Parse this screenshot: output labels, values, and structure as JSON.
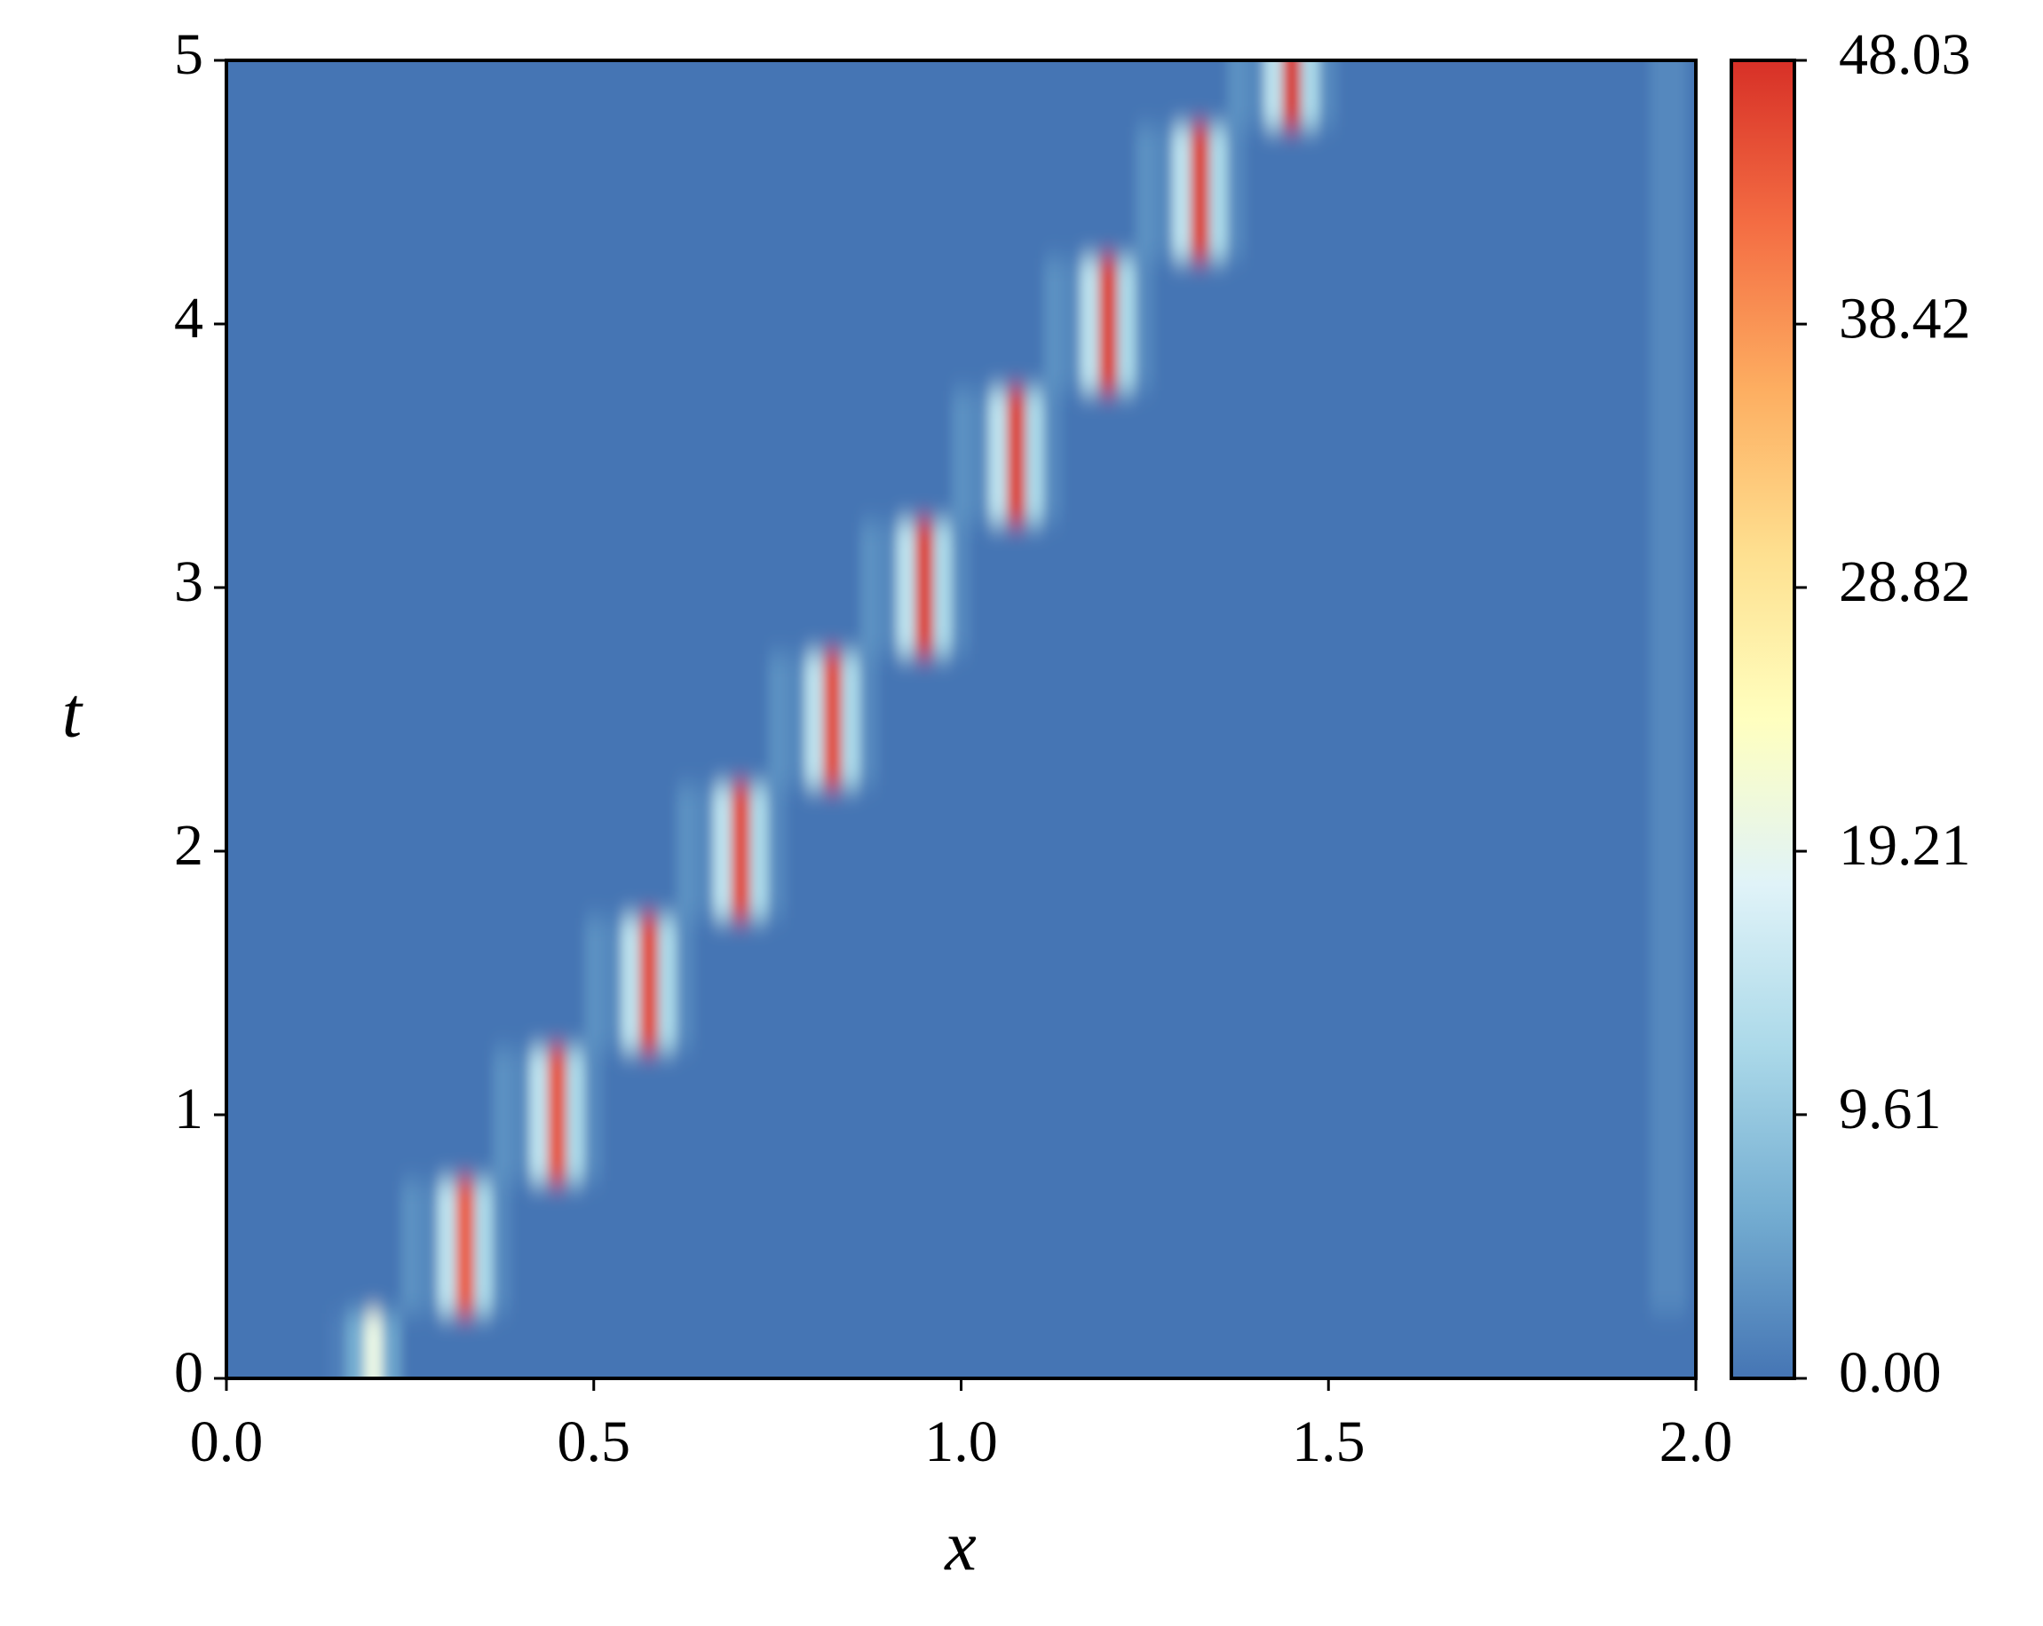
{
  "chart_data": {
    "type": "heatmap",
    "xlabel": "x",
    "ylabel": "t",
    "xlim": [
      0,
      2
    ],
    "ylim": [
      0,
      5
    ],
    "xticks": [
      {
        "value": 0,
        "label": "0.0"
      },
      0.5,
      {
        "value": 1,
        "label": "1.0"
      },
      1.5,
      {
        "value": 2,
        "label": "2.0"
      }
    ],
    "yticks": [
      0,
      1,
      2,
      3,
      4,
      5
    ],
    "zlim": [
      0,
      48.03
    ],
    "colorbar_ticks": [
      {
        "value": 0,
        "label": "0.00"
      },
      9.61,
      19.21,
      28.82,
      38.42,
      48.03
    ],
    "colormap": [
      "#4575b4",
      "#74add1",
      "#abd9e9",
      "#e0f3f8",
      "#ffffbf",
      "#fee090",
      "#fdae61",
      "#f46d43",
      "#d73027"
    ],
    "x": [
      0,
      0.025,
      0.05,
      0.075,
      0.1,
      0.125,
      0.15,
      0.175,
      0.2,
      0.225,
      0.25,
      0.275,
      0.3,
      0.325,
      0.35,
      0.375,
      0.4,
      0.425,
      0.45,
      0.475,
      0.5,
      0.525,
      0.55,
      0.575,
      0.6,
      0.625,
      0.65,
      0.675,
      0.7,
      0.725,
      0.75,
      0.775,
      0.8,
      0.825,
      0.85,
      0.875,
      0.9,
      0.925,
      0.95,
      0.975,
      1,
      1.025,
      1.05,
      1.075,
      1.1,
      1.125,
      1.15,
      1.175,
      1.2,
      1.225,
      1.25,
      1.275,
      1.3,
      1.325,
      1.35,
      1.375,
      1.4,
      1.425,
      1.45,
      1.475,
      1.5,
      1.525,
      1.55,
      1.575,
      1.6,
      1.625,
      1.65,
      1.675,
      1.7,
      1.725,
      1.75,
      1.775,
      1.8,
      1.825,
      1.85,
      1.875,
      1.9,
      1.925,
      1.95,
      1.975,
      2
    ],
    "y": [
      0,
      0.5,
      1,
      1.5,
      2,
      2.5,
      3,
      3.5,
      4,
      4.5,
      5
    ],
    "z": [
      [
        0,
        0,
        0,
        0,
        0,
        0,
        1,
        6,
        20,
        5,
        0,
        0,
        0,
        0,
        0,
        0,
        0,
        0,
        0,
        0,
        0,
        0,
        0,
        0,
        0,
        0,
        0,
        0,
        0,
        0,
        0,
        0,
        0,
        0,
        0,
        0,
        0,
        0,
        0,
        0,
        0,
        0,
        0,
        0,
        0,
        0,
        0,
        0,
        0,
        0,
        0,
        0,
        0,
        0,
        0,
        0,
        0,
        0,
        0,
        0,
        0,
        0,
        0,
        0,
        0,
        0,
        0,
        0,
        0,
        0,
        0,
        0,
        0,
        0,
        0,
        0,
        0,
        0,
        0,
        0,
        0
      ],
      [
        0,
        0,
        0,
        0,
        0,
        0,
        0,
        0,
        0,
        0,
        3,
        2,
        14,
        44,
        12,
        2,
        0,
        0,
        0,
        0,
        0,
        0,
        0,
        0,
        0,
        0,
        0,
        0,
        0,
        0,
        0,
        0,
        0,
        0,
        0,
        0,
        0,
        0,
        0,
        0,
        0,
        0,
        0,
        0,
        0,
        0,
        0,
        0,
        0,
        0,
        0,
        0,
        0,
        0,
        0,
        0,
        0,
        0,
        0,
        0,
        0,
        0,
        0,
        0,
        0,
        0,
        0,
        0,
        0,
        0,
        0,
        0,
        0,
        0,
        0,
        0,
        0,
        0,
        2,
        2,
        0
      ],
      [
        0,
        0,
        0,
        0,
        0,
        0,
        0,
        0,
        0,
        0,
        0,
        0,
        0,
        0,
        0,
        3,
        2,
        14,
        45,
        12,
        2,
        0,
        0,
        0,
        0,
        0,
        0,
        0,
        0,
        0,
        0,
        0,
        0,
        0,
        0,
        0,
        0,
        0,
        0,
        0,
        0,
        0,
        0,
        0,
        0,
        0,
        0,
        0,
        0,
        0,
        0,
        0,
        0,
        0,
        0,
        0,
        0,
        0,
        0,
        0,
        0,
        0,
        0,
        0,
        0,
        0,
        0,
        0,
        0,
        0,
        0,
        0,
        0,
        0,
        0,
        0,
        0,
        0,
        2,
        2,
        0
      ],
      [
        0,
        0,
        0,
        0,
        0,
        0,
        0,
        0,
        0,
        0,
        0,
        0,
        0,
        0,
        0,
        0,
        0,
        0,
        0,
        0,
        3,
        2,
        14,
        46,
        12,
        2,
        0,
        0,
        0,
        0,
        0,
        0,
        0,
        0,
        0,
        0,
        0,
        0,
        0,
        0,
        0,
        0,
        0,
        0,
        0,
        0,
        0,
        0,
        0,
        0,
        0,
        0,
        0,
        0,
        0,
        0,
        0,
        0,
        0,
        0,
        0,
        0,
        0,
        0,
        0,
        0,
        0,
        0,
        0,
        0,
        0,
        0,
        0,
        0,
        0,
        0,
        0,
        0,
        2,
        2,
        0
      ],
      [
        0,
        0,
        0,
        0,
        0,
        0,
        0,
        0,
        0,
        0,
        0,
        0,
        0,
        0,
        0,
        0,
        0,
        0,
        0,
        0,
        0,
        0,
        0,
        0,
        0,
        3,
        2,
        14,
        46,
        12,
        2,
        0,
        0,
        0,
        0,
        0,
        0,
        0,
        0,
        0,
        0,
        0,
        0,
        0,
        0,
        0,
        0,
        0,
        0,
        0,
        0,
        0,
        0,
        0,
        0,
        0,
        0,
        0,
        0,
        0,
        0,
        0,
        0,
        0,
        0,
        0,
        0,
        0,
        0,
        0,
        0,
        0,
        0,
        0,
        0,
        0,
        0,
        0,
        2,
        2,
        0
      ],
      [
        0,
        0,
        0,
        0,
        0,
        0,
        0,
        0,
        0,
        0,
        0,
        0,
        0,
        0,
        0,
        0,
        0,
        0,
        0,
        0,
        0,
        0,
        0,
        0,
        0,
        0,
        0,
        0,
        0,
        0,
        3,
        2,
        14,
        46,
        12,
        2,
        0,
        0,
        0,
        0,
        0,
        0,
        0,
        0,
        0,
        0,
        0,
        0,
        0,
        0,
        0,
        0,
        0,
        0,
        0,
        0,
        0,
        0,
        0,
        0,
        0,
        0,
        0,
        0,
        0,
        0,
        0,
        0,
        0,
        0,
        0,
        0,
        0,
        0,
        0,
        0,
        0,
        0,
        2,
        2,
        0
      ],
      [
        0,
        0,
        0,
        0,
        0,
        0,
        0,
        0,
        0,
        0,
        0,
        0,
        0,
        0,
        0,
        0,
        0,
        0,
        0,
        0,
        0,
        0,
        0,
        0,
        0,
        0,
        0,
        0,
        0,
        0,
        0,
        0,
        0,
        0,
        0,
        3,
        2,
        14,
        47,
        12,
        2,
        0,
        0,
        0,
        0,
        0,
        0,
        0,
        0,
        0,
        0,
        0,
        0,
        0,
        0,
        0,
        0,
        0,
        0,
        0,
        0,
        0,
        0,
        0,
        0,
        0,
        0,
        0,
        0,
        0,
        0,
        0,
        0,
        0,
        0,
        0,
        0,
        0,
        2,
        2,
        0
      ],
      [
        0,
        0,
        0,
        0,
        0,
        0,
        0,
        0,
        0,
        0,
        0,
        0,
        0,
        0,
        0,
        0,
        0,
        0,
        0,
        0,
        0,
        0,
        0,
        0,
        0,
        0,
        0,
        0,
        0,
        0,
        0,
        0,
        0,
        0,
        0,
        0,
        0,
        0,
        0,
        0,
        3,
        2,
        14,
        47,
        12,
        2,
        0,
        0,
        0,
        0,
        0,
        0,
        0,
        0,
        0,
        0,
        0,
        0,
        0,
        0,
        0,
        0,
        0,
        0,
        0,
        0,
        0,
        0,
        0,
        0,
        0,
        0,
        0,
        0,
        0,
        0,
        0,
        0,
        2,
        2,
        0
      ],
      [
        0,
        0,
        0,
        0,
        0,
        0,
        0,
        0,
        0,
        0,
        0,
        0,
        0,
        0,
        0,
        0,
        0,
        0,
        0,
        0,
        0,
        0,
        0,
        0,
        0,
        0,
        0,
        0,
        0,
        0,
        0,
        0,
        0,
        0,
        0,
        0,
        0,
        0,
        0,
        0,
        0,
        0,
        0,
        0,
        0,
        3,
        2,
        14,
        47,
        12,
        2,
        0,
        0,
        0,
        0,
        0,
        0,
        0,
        0,
        0,
        0,
        0,
        0,
        0,
        0,
        0,
        0,
        0,
        0,
        0,
        0,
        0,
        0,
        0,
        0,
        0,
        0,
        0,
        2,
        2,
        0
      ],
      [
        0,
        0,
        0,
        0,
        0,
        0,
        0,
        0,
        0,
        0,
        0,
        0,
        0,
        0,
        0,
        0,
        0,
        0,
        0,
        0,
        0,
        0,
        0,
        0,
        0,
        0,
        0,
        0,
        0,
        0,
        0,
        0,
        0,
        0,
        0,
        0,
        0,
        0,
        0,
        0,
        0,
        0,
        0,
        0,
        0,
        0,
        0,
        0,
        0,
        0,
        3,
        2,
        14,
        47,
        12,
        2,
        0,
        0,
        0,
        0,
        0,
        0,
        0,
        0,
        0,
        0,
        0,
        0,
        0,
        0,
        0,
        0,
        0,
        0,
        0,
        0,
        0,
        0,
        2,
        2,
        0
      ],
      [
        0,
        0,
        0,
        0,
        0,
        0,
        0,
        0,
        0,
        0,
        0,
        0,
        0,
        0,
        0,
        0,
        0,
        0,
        0,
        0,
        0,
        0,
        0,
        0,
        0,
        0,
        0,
        0,
        0,
        0,
        0,
        0,
        0,
        0,
        0,
        0,
        0,
        0,
        0,
        0,
        0,
        0,
        0,
        0,
        0,
        0,
        0,
        0,
        0,
        0,
        0,
        0,
        0,
        0,
        0,
        3,
        2,
        14,
        48.03,
        12,
        2,
        0,
        0,
        0,
        0,
        0,
        0,
        0,
        0,
        0,
        0,
        0,
        0,
        0,
        0,
        0,
        0,
        0,
        2,
        2,
        0
      ]
    ]
  }
}
